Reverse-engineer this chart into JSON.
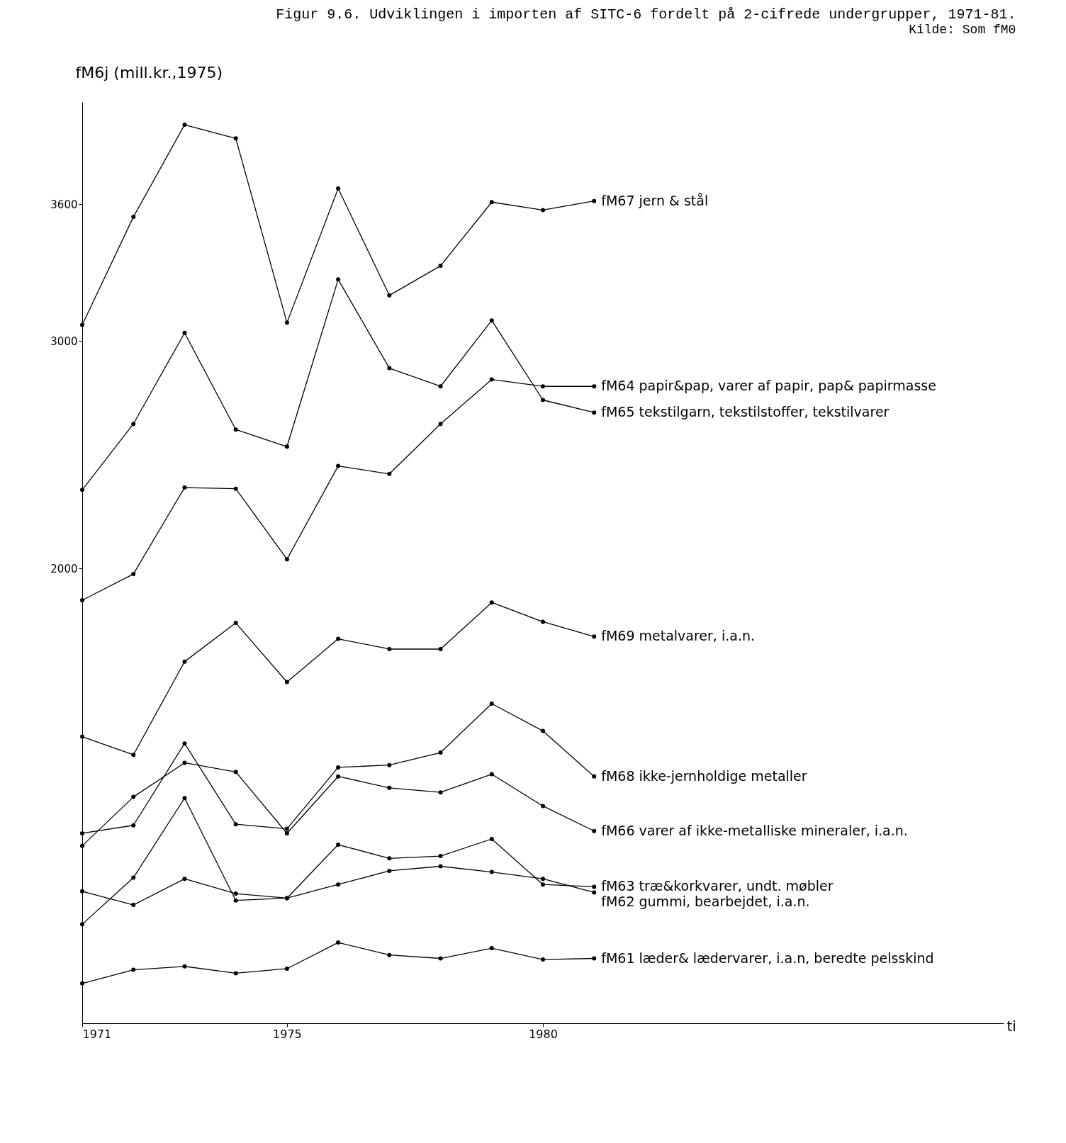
{
  "chart_data": {
    "type": "line",
    "title": "Figur 9.6. Udviklingen i importen af SITC-6 fordelt på 2-cifrede undergrupper, 1971-81.",
    "annotations": [
      "Kilde: Som fM0"
    ],
    "ylabel": "fM6j (mill.kr.,1975)",
    "xlabel": "ti",
    "x": [
      1971,
      1972,
      1973,
      1974,
      1975,
      1976,
      1977,
      1978,
      1979,
      1980,
      1981
    ],
    "xlim": [
      1971,
      1989
    ],
    "xticks": [
      1971,
      1975,
      1980
    ],
    "ylim": [
      0,
      4050
    ],
    "yticks": [
      2000,
      3000,
      3600
    ],
    "grid": false,
    "legend": false,
    "marker": "circle",
    "series": [
      {
        "name": "fM67 jern & stål",
        "color": "#000000",
        "values": [
          3070,
          3545,
          3950,
          3890,
          3080,
          3670,
          3200,
          3330,
          3610,
          3575,
          3615
        ]
      },
      {
        "name": "fM64 papir&pap, varer af papir, pap& papirmasse",
        "color": "#000000",
        "values": [
          1860,
          1975,
          2355,
          2350,
          2040,
          2450,
          2415,
          2635,
          2830,
          2800,
          2800
        ]
      },
      {
        "name": "fM65 tekstilgarn, tekstilstoffer, tekstilvarer",
        "color": "#000000",
        "values": [
          2345,
          2635,
          3035,
          2610,
          2535,
          3270,
          2880,
          2800,
          3090,
          2740,
          2685
        ]
      },
      {
        "name": "fM69 metalvarer, i.a.n.",
        "color": "#000000",
        "values": [
          1260,
          1180,
          1590,
          1760,
          1500,
          1690,
          1645,
          1645,
          1850,
          1765,
          1700
        ]
      },
      {
        "name": "fM68 ikke-jernholdige metaller",
        "color": "#000000",
        "values": [
          835,
          870,
          1230,
          875,
          855,
          1125,
          1135,
          1190,
          1405,
          1285,
          1085
        ]
      },
      {
        "name": "fM66 varer af ikke-metalliske mineraler, i.a.n.",
        "color": "#000000",
        "values": [
          780,
          995,
          1145,
          1105,
          835,
          1085,
          1035,
          1015,
          1095,
          955,
          845
        ]
      },
      {
        "name": "fM63 træ&korkvarer, undt. møbler",
        "color": "#000000",
        "values": [
          435,
          640,
          990,
          540,
          550,
          785,
          725,
          735,
          810,
          610,
          600
        ]
      },
      {
        "name": "fM62 gummi, bearbejdet, i.a.n.",
        "color": "#000000",
        "values": [
          580,
          520,
          635,
          570,
          550,
          610,
          670,
          690,
          665,
          635,
          575
        ]
      },
      {
        "name": "fM61 læder& lædervarer, i.a.n, beredte pelsskind",
        "color": "#000000",
        "values": [
          175,
          235,
          250,
          220,
          240,
          355,
          300,
          285,
          330,
          280,
          285
        ]
      }
    ]
  }
}
